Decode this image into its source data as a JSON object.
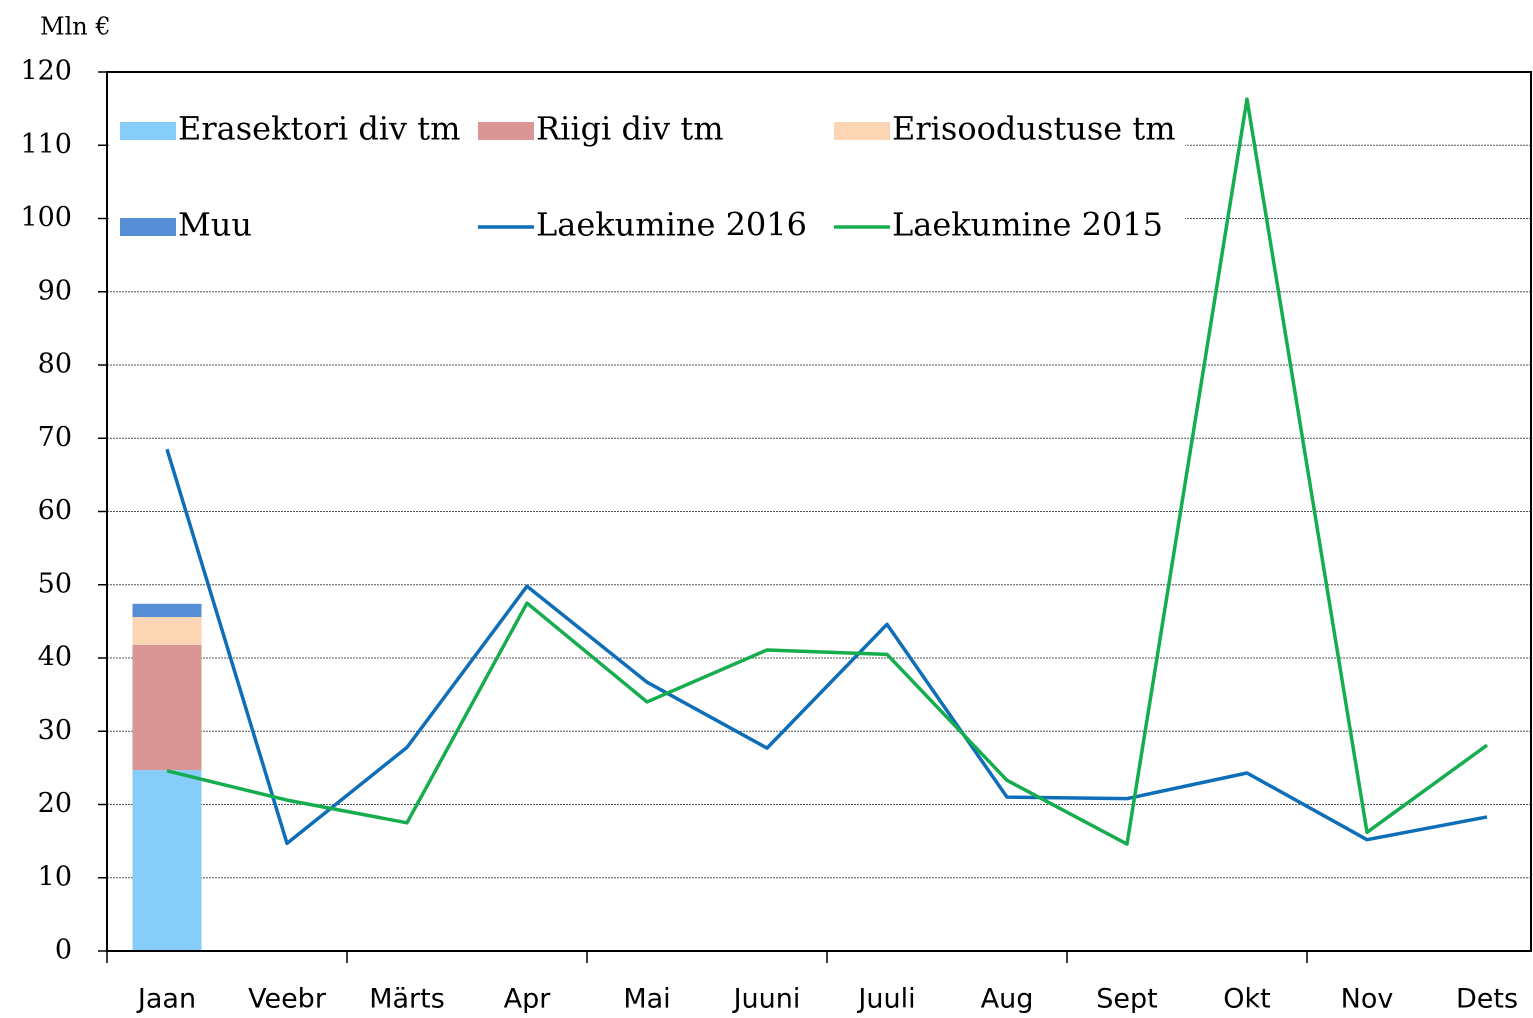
{
  "chart_data": {
    "type": "combo",
    "y_axis_label": "Mln €",
    "categories": [
      "Jaan",
      "Veebr",
      "Märts",
      "Apr",
      "Mai",
      "Juuni",
      "Juuli",
      "Aug",
      "Sept",
      "Okt",
      "Nov",
      "Dets"
    ],
    "ylim": [
      0,
      120
    ],
    "yticks": [
      0,
      10,
      20,
      30,
      40,
      50,
      60,
      70,
      80,
      90,
      100,
      110,
      120
    ],
    "grid": true,
    "legend": "top",
    "series": [
      {
        "name": "Erasektori div tm",
        "type": "bar",
        "color": "#87cdfa",
        "values": [
          24.7,
          null,
          null,
          null,
          null,
          null,
          null,
          null,
          null,
          null,
          null,
          null
        ]
      },
      {
        "name": "Riigi div tm",
        "type": "bar",
        "color": "#d99694",
        "values": [
          17.1,
          null,
          null,
          null,
          null,
          null,
          null,
          null,
          null,
          null,
          null,
          null
        ]
      },
      {
        "name": "Erisoodustuse tm",
        "type": "bar",
        "color": "#fcd5b5",
        "values": [
          3.8,
          null,
          null,
          null,
          null,
          null,
          null,
          null,
          null,
          null,
          null,
          null
        ]
      },
      {
        "name": "Muu",
        "type": "bar",
        "color": "#558ed5",
        "values": [
          1.8,
          null,
          null,
          null,
          null,
          null,
          null,
          null,
          null,
          null,
          null,
          null
        ]
      },
      {
        "name": "Laekumine 2016",
        "type": "line",
        "color": "#0e6eb8",
        "values": [
          68.5,
          14.7,
          27.8,
          49.8,
          36.7,
          27.7,
          44.6,
          21.0,
          20.8,
          24.3,
          15.2,
          18.3
        ]
      },
      {
        "name": "Laekumine 2015",
        "type": "line",
        "color": "#16ad4f",
        "values": [
          24.6,
          20.6,
          17.5,
          47.5,
          34.0,
          41.1,
          40.5,
          23.3,
          14.6,
          116.3,
          16.2,
          28.1
        ]
      }
    ]
  }
}
